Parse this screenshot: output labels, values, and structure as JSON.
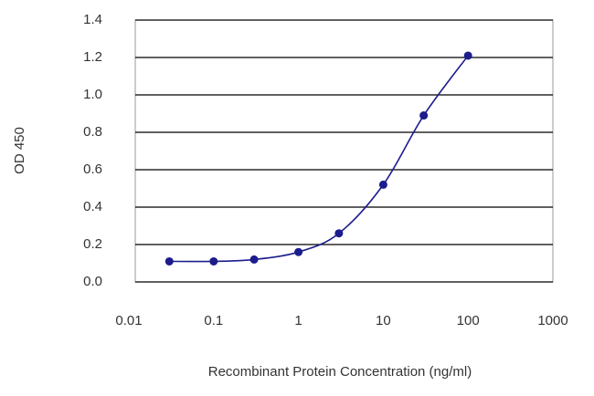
{
  "chart_data": {
    "type": "scatter",
    "x_label": "Recombinant Protein Concentration (ng/ml)",
    "y_label": "OD 450",
    "x": [
      0.03,
      0.1,
      0.3,
      1,
      3,
      10,
      30,
      100
    ],
    "values": [
      0.11,
      0.11,
      0.12,
      0.16,
      0.26,
      0.52,
      0.89,
      1.21
    ],
    "color": "#1c1c8c",
    "fit_line": true,
    "xscale": "log",
    "xlim": [
      0.01,
      1000
    ],
    "xticks": [
      0.01,
      0.1,
      1,
      10,
      100,
      1000
    ],
    "ylim": [
      0,
      1.4
    ],
    "yticks": [
      {
        "value": 0,
        "label": "0.0"
      },
      0.2,
      0.4,
      0.6,
      0.8,
      {
        "value": 1,
        "label": "1.0"
      },
      1.2,
      1.4
    ],
    "grid": true
  }
}
